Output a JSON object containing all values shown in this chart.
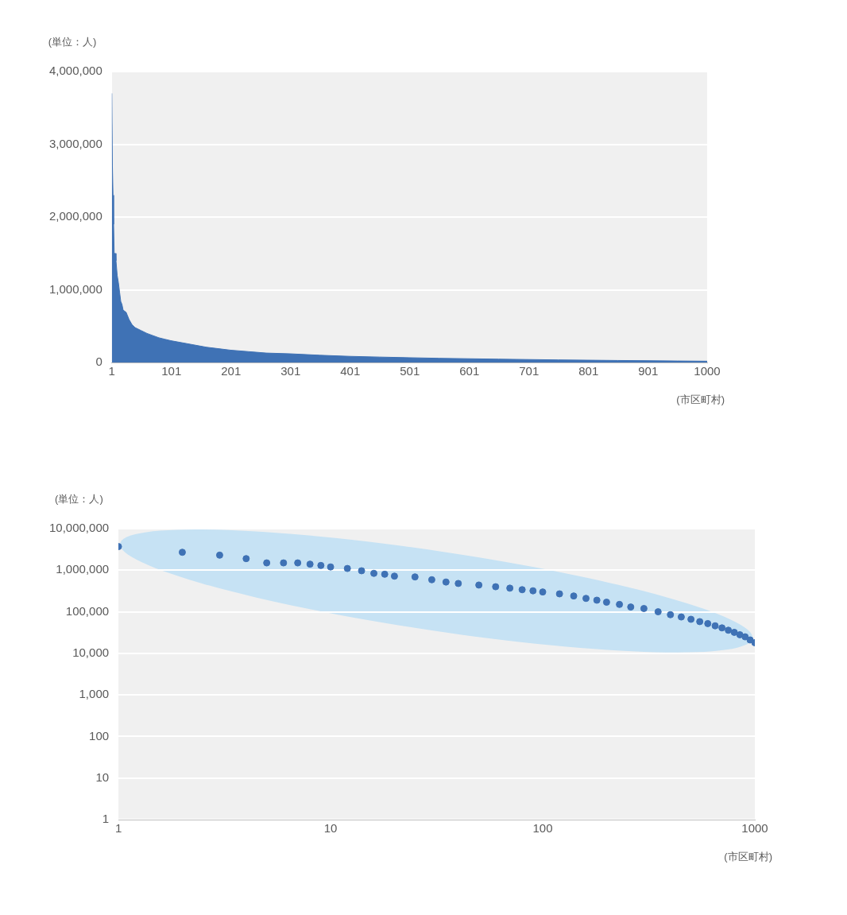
{
  "chart_data": [
    {
      "type": "area",
      "ylabel": "(単位：人)",
      "xlabel": "(市区町村)",
      "color": "#3f72b5",
      "grid": "y",
      "legend": false,
      "x": [
        1,
        2,
        3,
        4,
        5,
        6,
        7,
        8,
        9,
        10,
        12,
        14,
        16,
        18,
        20,
        25,
        30,
        35,
        40,
        50,
        60,
        70,
        80,
        90,
        100,
        120,
        140,
        160,
        180,
        200,
        230,
        260,
        300,
        350,
        400,
        450,
        500,
        550,
        600,
        650,
        700,
        750,
        800,
        850,
        900,
        950,
        1000
      ],
      "values": [
        3700000,
        2700000,
        2300000,
        1900000,
        1500000,
        1500000,
        1500000,
        1400000,
        1300000,
        1200000,
        1100000,
        970000,
        840000,
        800000,
        720000,
        690000,
        590000,
        520000,
        480000,
        440000,
        400000,
        370000,
        340000,
        320000,
        300000,
        270000,
        240000,
        210000,
        190000,
        170000,
        150000,
        130000,
        120000,
        100000,
        85000,
        75000,
        66000,
        58000,
        52000,
        46000,
        41000,
        36000,
        32000,
        28000,
        25000,
        21000,
        18000
      ],
      "xlim": [
        1,
        1000
      ],
      "xticks": [
        1,
        101,
        201,
        301,
        401,
        501,
        601,
        701,
        801,
        901,
        1000
      ],
      "ylim": [
        0,
        4000000
      ],
      "yticks": [
        0,
        {
          "value": 1000000,
          "label": "1,000,000"
        },
        {
          "value": 2000000,
          "label": "2,000,000"
        },
        {
          "value": 3000000,
          "label": "3,000,000"
        },
        {
          "value": 4000000,
          "label": "4,000,000"
        }
      ]
    },
    {
      "type": "scatter",
      "ylabel": "(単位：人)",
      "xlabel": "(市区町村)",
      "color": "#3f72b5",
      "grid": "y",
      "legend": false,
      "marker": "circle",
      "log": "xy",
      "x": [
        1,
        2,
        3,
        4,
        5,
        6,
        7,
        8,
        9,
        10,
        12,
        14,
        16,
        18,
        20,
        25,
        30,
        35,
        40,
        50,
        60,
        70,
        80,
        90,
        100,
        120,
        140,
        160,
        180,
        200,
        230,
        260,
        300,
        350,
        400,
        450,
        500,
        550,
        600,
        650,
        700,
        750,
        800,
        850,
        900,
        950,
        1000
      ],
      "values": [
        3700000,
        2700000,
        2300000,
        1900000,
        1500000,
        1500000,
        1500000,
        1400000,
        1300000,
        1200000,
        1100000,
        970000,
        840000,
        800000,
        720000,
        690000,
        590000,
        520000,
        480000,
        440000,
        400000,
        370000,
        340000,
        320000,
        300000,
        270000,
        240000,
        210000,
        190000,
        170000,
        150000,
        130000,
        120000,
        100000,
        85000,
        75000,
        66000,
        58000,
        52000,
        46000,
        41000,
        36000,
        32000,
        28000,
        25000,
        21000,
        18000
      ],
      "xlim": [
        1,
        1000
      ],
      "xticks": [
        1,
        10,
        100,
        1000
      ],
      "ylim": [
        1,
        10000000
      ],
      "yticks": [
        1,
        10,
        100,
        {
          "value": 1000,
          "label": "1,000"
        },
        {
          "value": 10000,
          "label": "10,000"
        },
        {
          "value": 100000,
          "label": "100,000"
        },
        {
          "value": 1000000,
          "label": "1,000,000"
        },
        {
          "value": 10000000,
          "label": "10,000,000"
        }
      ]
    }
  ]
}
